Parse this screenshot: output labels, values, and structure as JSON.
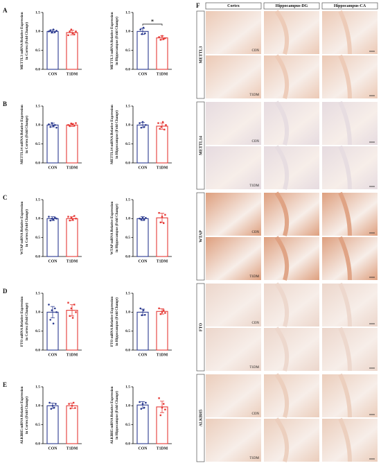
{
  "chart_data": [
    {
      "type": "bar",
      "panel": "A",
      "ylabel": [
        "METTL3 mRNA Relative Expression",
        "in Cortex (Fold Change)"
      ],
      "categories": [
        "CON",
        "T1DM"
      ],
      "values": [
        1.0,
        0.97
      ],
      "errors": [
        0.04,
        0.06
      ],
      "points": [
        [
          1.0,
          1.03,
          0.97,
          1.05,
          0.98,
          1.02
        ],
        [
          0.9,
          1.0,
          1.05,
          0.95,
          0.92,
          1.0
        ]
      ],
      "colors": [
        "#2b3a8f",
        "#e53935"
      ],
      "ylim": [
        0,
        1.5
      ],
      "yticks": [
        {
          "value": 0,
          "label": "0.0"
        },
        0.5,
        {
          "value": 1,
          "label": "1.0"
        },
        1.5
      ]
    },
    {
      "type": "bar",
      "ylabel": [
        "METTL3 mRNA Relative Expression",
        "in Hippocampus (Fold Change)"
      ],
      "categories": [
        "CON",
        "T1DM"
      ],
      "values": [
        1.0,
        0.83
      ],
      "errors": [
        0.08,
        0.05
      ],
      "points": [
        [
          1.05,
          0.93,
          1.1,
          0.95
        ],
        [
          0.85,
          0.78,
          0.88,
          0.8,
          0.82
        ]
      ],
      "colors": [
        "#2b3a8f",
        "#e53935"
      ],
      "ylim": [
        0,
        1.5
      ],
      "yticks": [
        {
          "value": 0,
          "label": "0.0"
        },
        0.5,
        {
          "value": 1,
          "label": "1.0"
        },
        1.5
      ],
      "annotation": "*"
    },
    {
      "type": "bar",
      "panel": "B",
      "ylabel": [
        "METTL14 mRNA Relative Expression",
        "in Cortex (Fold Change)"
      ],
      "categories": [
        "CON",
        "T1DM"
      ],
      "values": [
        1.0,
        1.0
      ],
      "errors": [
        0.05,
        0.04
      ],
      "points": [
        [
          1.02,
          0.95,
          1.05,
          0.98,
          1.0,
          0.93
        ],
        [
          1.0,
          0.97,
          1.04,
          1.02,
          0.98,
          1.05
        ]
      ],
      "colors": [
        "#2b3a8f",
        "#e53935"
      ],
      "ylim": [
        0,
        1.5
      ],
      "yticks": [
        {
          "value": 0,
          "label": "0.0"
        },
        0.5,
        {
          "value": 1,
          "label": "1.0"
        },
        1.5
      ]
    },
    {
      "type": "bar",
      "ylabel": [
        "METTL14 mRNA Relative Expression",
        "in Hippocampus (Fold Change)"
      ],
      "categories": [
        "CON",
        "T1DM"
      ],
      "values": [
        1.0,
        0.97
      ],
      "errors": [
        0.07,
        0.08
      ],
      "points": [
        [
          1.05,
          0.93,
          1.08,
          0.95,
          1.0
        ],
        [
          1.05,
          0.9,
          0.95,
          1.08,
          0.88,
          1.0
        ]
      ],
      "colors": [
        "#2b3a8f",
        "#e53935"
      ],
      "ylim": [
        0,
        1.5
      ],
      "yticks": [
        {
          "value": 0,
          "label": "0.0"
        },
        0.5,
        {
          "value": 1,
          "label": "1.0"
        },
        1.5
      ]
    },
    {
      "type": "bar",
      "panel": "C",
      "ylabel": [
        "WTAP mRNA Relative Expression",
        "in Cortex (Fold Change)"
      ],
      "categories": [
        "CON",
        "T1DM"
      ],
      "values": [
        1.0,
        1.0
      ],
      "errors": [
        0.05,
        0.05
      ],
      "points": [
        [
          1.05,
          0.95,
          1.0,
          0.97,
          1.03,
          1.0
        ],
        [
          1.05,
          0.95,
          1.02,
          0.98,
          1.07,
          1.0
        ]
      ],
      "colors": [
        "#2b3a8f",
        "#e53935"
      ],
      "ylim": [
        0,
        1.5
      ],
      "yticks": [
        {
          "value": 0,
          "label": "0.0"
        },
        0.5,
        {
          "value": 1,
          "label": "1.0"
        },
        1.5
      ]
    },
    {
      "type": "bar",
      "ylabel": [
        "WTAP mRNA Relative Expression",
        "in Hippocampus (Fold Change)"
      ],
      "categories": [
        "CON",
        "T1DM"
      ],
      "values": [
        1.0,
        1.02
      ],
      "errors": [
        0.05,
        0.12
      ],
      "points": [
        [
          1.0,
          0.98,
          1.03,
          0.97,
          1.02
        ],
        [
          1.15,
          0.9,
          1.05,
          0.88,
          1.1
        ]
      ],
      "colors": [
        "#2b3a8f",
        "#e53935"
      ],
      "ylim": [
        0,
        1.5
      ],
      "yticks": [
        {
          "value": 0,
          "label": "0.0"
        },
        0.5,
        {
          "value": 1,
          "label": "1.0"
        },
        1.5
      ]
    },
    {
      "type": "bar",
      "panel": "D",
      "ylabel": [
        "FTO mRNA Relative Expression",
        "in Cortex (Fold Change)"
      ],
      "categories": [
        "CON",
        "T1DM"
      ],
      "values": [
        1.0,
        1.05
      ],
      "errors": [
        0.15,
        0.15
      ],
      "points": [
        [
          1.2,
          0.8,
          1.05,
          0.7,
          1.1,
          1.0
        ],
        [
          1.25,
          0.9,
          1.1,
          0.85,
          1.2,
          1.0
        ]
      ],
      "colors": [
        "#2b3a8f",
        "#e53935"
      ],
      "ylim": [
        0,
        1.5
      ],
      "yticks": [
        {
          "value": 0,
          "label": "0.0"
        },
        0.5,
        {
          "value": 1,
          "label": "1.0"
        },
        1.5
      ]
    },
    {
      "type": "bar",
      "ylabel": [
        "FTO mRNA Relative Expression",
        "in Hippocampus (Fold Change)"
      ],
      "categories": [
        "CON",
        "T1DM"
      ],
      "values": [
        1.0,
        1.02
      ],
      "errors": [
        0.08,
        0.07
      ],
      "points": [
        [
          1.1,
          0.92,
          1.05,
          0.93
        ],
        [
          1.1,
          0.95,
          1.0,
          1.05,
          0.98
        ]
      ],
      "colors": [
        "#2b3a8f",
        "#e53935"
      ],
      "ylim": [
        0,
        1.5
      ],
      "yticks": [
        {
          "value": 0,
          "label": "0.0"
        },
        0.5,
        {
          "value": 1,
          "label": "1.0"
        },
        1.5
      ]
    },
    {
      "type": "bar",
      "panel": "E",
      "ylabel": [
        "ALKBH5 mRNA Relative Expression",
        "in Cortex (Fold Change)"
      ],
      "categories": [
        "CON",
        "T1DM"
      ],
      "values": [
        1.0,
        1.0
      ],
      "errors": [
        0.07,
        0.07
      ],
      "points": [
        [
          1.08,
          0.92,
          1.0,
          0.95,
          1.05
        ],
        [
          1.05,
          0.93,
          1.0,
          1.08,
          0.94
        ]
      ],
      "colors": [
        "#2b3a8f",
        "#e53935"
      ],
      "ylim": [
        0,
        1.5
      ],
      "yticks": [
        {
          "value": 0,
          "label": "0.0"
        },
        0.5,
        {
          "value": 1,
          "label": "1.0"
        },
        1.5
      ]
    },
    {
      "type": "bar",
      "ylabel": [
        "ALKBH5 mRNA Relative Expression",
        "in Hippocampus (Fold Change)"
      ],
      "categories": [
        "CON",
        "T1DM"
      ],
      "values": [
        1.02,
        0.97
      ],
      "errors": [
        0.09,
        0.15
      ],
      "points": [
        [
          1.1,
          0.92,
          1.05,
          0.95,
          1.08
        ],
        [
          1.2,
          0.75,
          0.95,
          1.05,
          0.9
        ]
      ],
      "colors": [
        "#2b3a8f",
        "#e53935"
      ],
      "ylim": [
        0,
        1.5
      ],
      "yticks": [
        {
          "value": 0,
          "label": "0.0"
        },
        0.5,
        {
          "value": 1,
          "label": "1.0"
        },
        1.5
      ]
    }
  ],
  "panel_f": {
    "label": "F",
    "columns": [
      "Cortex",
      "Hippocampus-DG",
      "Hippocampus-CA"
    ],
    "rows": [
      {
        "name": "METTL3",
        "conditions": [
          "CON",
          "T1DM"
        ],
        "tint": "#ecc9b5"
      },
      {
        "name": "METTL14",
        "conditions": [
          "CON",
          "T1DM"
        ],
        "tint": "#e6dbe0"
      },
      {
        "name": "WTAP",
        "conditions": [
          "CON",
          "T1DM"
        ],
        "tint": "#de9f7e"
      },
      {
        "name": "FTO",
        "conditions": [
          "CON",
          "T1DM"
        ],
        "tint": "#ecd6cb"
      },
      {
        "name": "ALKBH5",
        "conditions": [
          "CON",
          "T1DM"
        ],
        "tint": "#ebcdbb"
      }
    ]
  }
}
